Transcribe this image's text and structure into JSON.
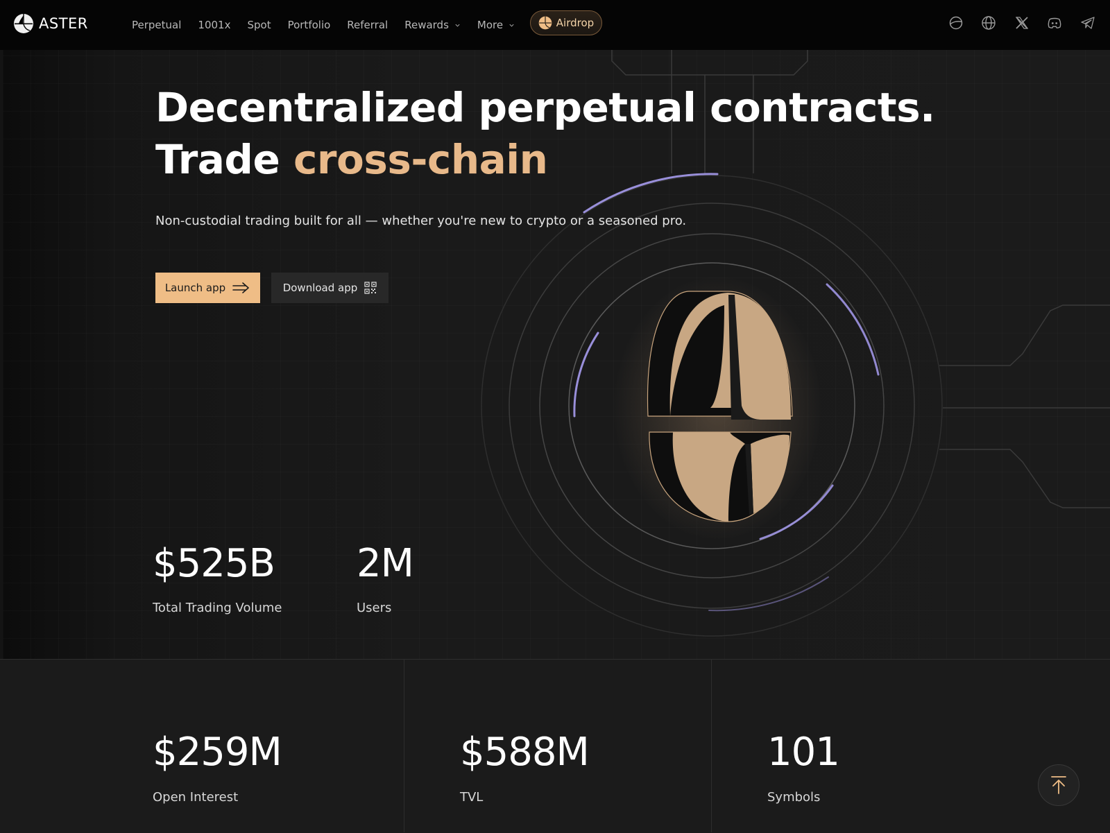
{
  "header": {
    "brand": "ASTER",
    "nav": [
      {
        "label": "Perpetual",
        "dropdown": false
      },
      {
        "label": "1001x",
        "dropdown": false
      },
      {
        "label": "Spot",
        "dropdown": false
      },
      {
        "label": "Portfolio",
        "dropdown": false
      },
      {
        "label": "Referral",
        "dropdown": false
      },
      {
        "label": "Rewards",
        "dropdown": true
      },
      {
        "label": "More",
        "dropdown": true
      }
    ],
    "airdrop_label": "Airdrop",
    "social_icons": [
      "planet-icon",
      "globe-icon",
      "x-icon",
      "discord-icon",
      "telegram-icon"
    ]
  },
  "hero": {
    "title_line1": "Decentralized perpetual contracts.",
    "title_line2_prefix": "Trade ",
    "title_line2_accent": "cross-chain",
    "subtitle": "Non-custodial trading built for all — whether you're new to crypto or a seasoned pro.",
    "launch_label": "Launch app",
    "download_label": "Download app"
  },
  "stats_top": [
    {
      "value": "$525B",
      "label": "Total Trading Volume"
    },
    {
      "value": "2M",
      "label": "Users"
    }
  ],
  "stats_bottom": [
    {
      "value": "$259M",
      "label": "Open Interest"
    },
    {
      "value": "$588M",
      "label": "TVL"
    },
    {
      "value": "101",
      "label": "Symbols"
    }
  ],
  "colors": {
    "accent": "#efbd86",
    "accent_text": "#e8b98a",
    "ring_highlight": "#a79cf0",
    "background": "#1b1b1b"
  }
}
